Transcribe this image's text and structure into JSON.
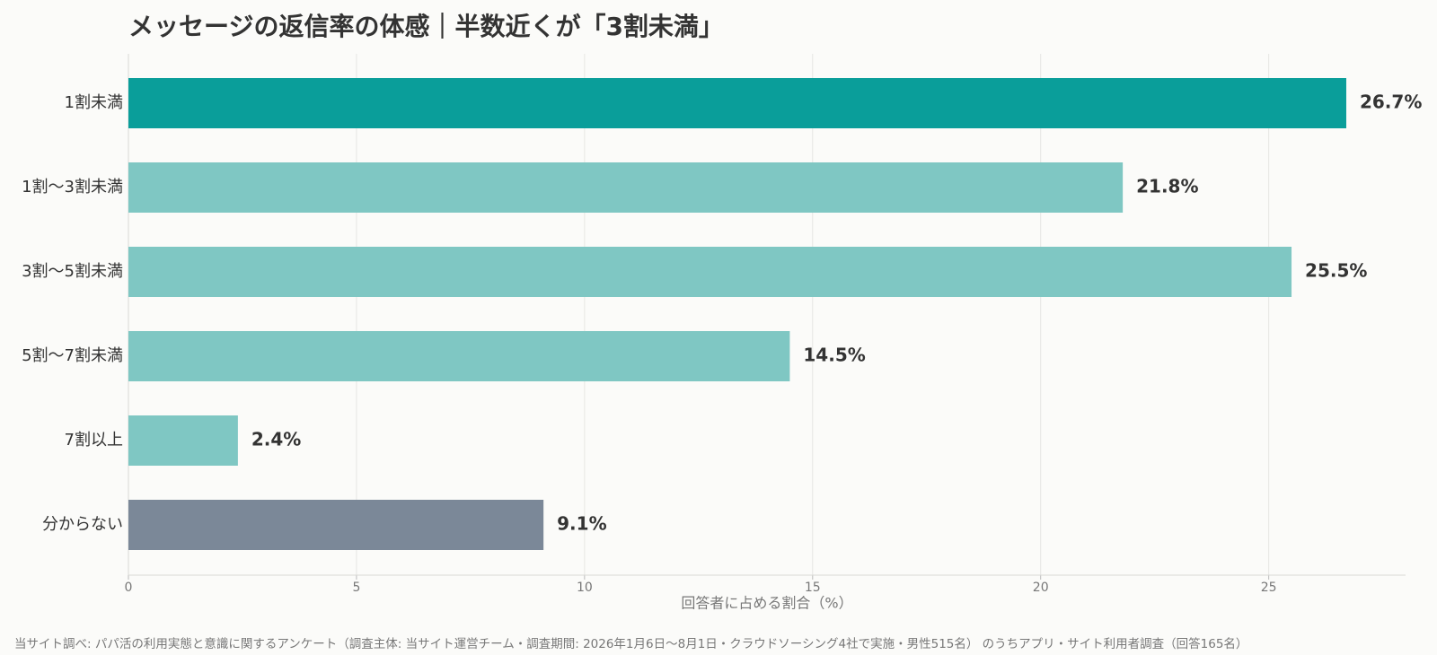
{
  "chart_data": {
    "type": "bar",
    "orientation": "horizontal",
    "title": "メッセージの返信率の体感｜半数近くが「3割未満」",
    "categories": [
      "1割未満",
      "1割〜3割未満",
      "3割〜5割未満",
      "5割〜7割未満",
      "7割以上",
      "分からない"
    ],
    "values": [
      26.7,
      21.8,
      25.5,
      14.5,
      2.4,
      9.1
    ],
    "value_labels": [
      "26.7%",
      "21.8%",
      "25.5%",
      "14.5%",
      "2.4%",
      "9.1%"
    ],
    "bar_colors": [
      "#0a9e9a",
      "#7fc7c3",
      "#7fc7c3",
      "#7fc7c3",
      "#7fc7c3",
      "#7b8898"
    ],
    "xlabel": "回答者に占める割合（%）",
    "ylabel": "",
    "xlim": [
      0,
      28
    ],
    "xticks": [
      0,
      5,
      10,
      15,
      20,
      25
    ],
    "grid": "vertical"
  },
  "footnote": "当サイト調べ: パパ活の利用実態と意識に関するアンケート（調査主体: 当サイト運営チーム・調査期間: 2026年1月6日〜8月1日・クラウドソーシング4社で実施・男性515名） のうちアプリ・サイト利用者調査（回答165名）"
}
